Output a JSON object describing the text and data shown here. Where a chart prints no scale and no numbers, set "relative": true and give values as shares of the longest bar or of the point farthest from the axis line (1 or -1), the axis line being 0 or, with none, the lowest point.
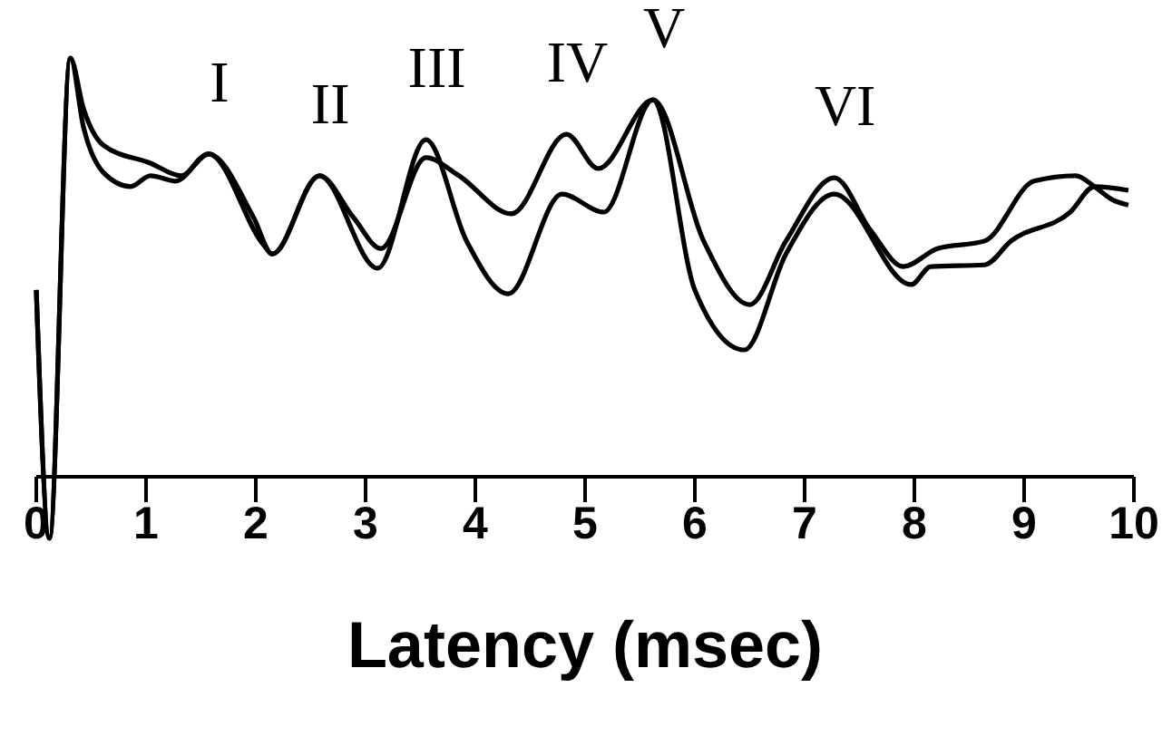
{
  "chart_data": {
    "type": "line",
    "relative": true,
    "xlabel": "Latency (msec)",
    "xlim": [
      0,
      10
    ],
    "xticks": [
      0,
      1,
      2,
      3,
      4,
      5,
      6,
      7,
      8,
      9,
      10
    ],
    "series": [
      {
        "color": "#000000",
        "x": [
          0,
          0.12,
          0.31,
          0.43,
          0.61,
          1.04,
          1.32,
          1.57,
          1.98,
          2.15,
          2.58,
          2.89,
          3.14,
          3.55,
          3.85,
          4.33,
          4.83,
          5.12,
          5.62,
          6.08,
          6.5,
          6.83,
          7.27,
          7.6,
          7.9,
          8.21,
          8.64,
          9.09,
          9.47,
          9.64,
          9.8,
          9.95
        ],
        "values": [
          0.446,
          -0.147,
          1.0,
          0.879,
          0.792,
          0.749,
          0.719,
          0.771,
          0.619,
          0.532,
          0.719,
          0.619,
          0.545,
          0.762,
          0.719,
          0.628,
          0.818,
          0.736,
          0.9,
          0.563,
          0.411,
          0.563,
          0.714,
          0.589,
          0.502,
          0.545,
          0.563,
          0.706,
          0.719,
          0.693,
          0.662,
          0.649
        ]
      },
      {
        "color": "#000000",
        "x": [
          0,
          0.12,
          0.31,
          0.43,
          0.61,
          0.86,
          1.04,
          1.27,
          1.57,
          2.07,
          2.15,
          2.58,
          3.11,
          3.55,
          3.92,
          4.3,
          4.79,
          5.17,
          5.62,
          6.0,
          6.45,
          6.83,
          7.27,
          7.97,
          8.15,
          8.64,
          8.88,
          9.42,
          9.64,
          9.95
        ],
        "values": [
          0.446,
          -0.147,
          1.0,
          0.835,
          0.727,
          0.693,
          0.719,
          0.706,
          0.771,
          0.554,
          0.532,
          0.719,
          0.498,
          0.805,
          0.563,
          0.437,
          0.675,
          0.632,
          0.9,
          0.446,
          0.303,
          0.532,
          0.675,
          0.459,
          0.502,
          0.506,
          0.563,
          0.632,
          0.693,
          0.684
        ]
      }
    ],
    "annotations": [
      {
        "text": "I",
        "x": 1.57,
        "y": 0.771
      },
      {
        "text": "II",
        "x": 2.58,
        "y": 0.719
      },
      {
        "text": "III",
        "x": 3.55,
        "y": 0.805
      },
      {
        "text": "IV",
        "x": 4.83,
        "y": 0.818
      },
      {
        "text": "V",
        "x": 5.62,
        "y": 0.9
      },
      {
        "text": "VI",
        "x": 7.27,
        "y": 0.714
      }
    ]
  }
}
